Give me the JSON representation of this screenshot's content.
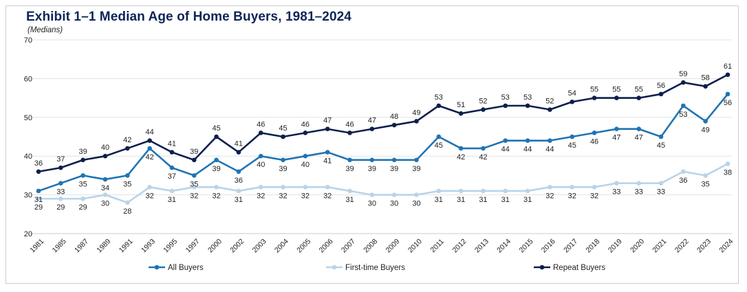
{
  "title": "Exhibit 1–1 Median Age of Home Buyers, 1981–2024",
  "subtitle": "(Medians)",
  "chart_data": {
    "type": "line",
    "title": "Exhibit 1–1 Median Age of Home Buyers, 1981–2024",
    "subtitle": "(Medians)",
    "xlabel": "",
    "ylabel": "",
    "ylim": [
      20,
      70
    ],
    "yticks": [
      20,
      30,
      40,
      50,
      60,
      70
    ],
    "grid": true,
    "legend_position": "bottom",
    "categories": [
      "1981",
      "1985",
      "1987",
      "1989",
      "1991",
      "1993",
      "1995",
      "1997",
      "2000",
      "2002",
      "2003",
      "2004",
      "2005",
      "2006",
      "2007",
      "2008",
      "2009",
      "2010",
      "2011",
      "2012",
      "2013",
      "2014",
      "2015",
      "2016",
      "2017",
      "2018",
      "2019",
      "2020",
      "2021",
      "2022",
      "2023",
      "2024"
    ],
    "series": [
      {
        "name": "All Buyers",
        "color": "#1f74b4",
        "label_position": "below",
        "values": [
          31,
          33,
          35,
          34,
          35,
          42,
          37,
          35,
          39,
          36,
          40,
          39,
          40,
          41,
          39,
          39,
          39,
          39,
          45,
          42,
          42,
          44,
          44,
          44,
          45,
          46,
          47,
          47,
          45,
          53,
          49,
          56
        ]
      },
      {
        "name": "First-time Buyers",
        "color": "#b8d4ea",
        "label_position": "below",
        "values": [
          29,
          29,
          29,
          30,
          28,
          32,
          31,
          32,
          32,
          31,
          32,
          32,
          32,
          32,
          31,
          30,
          30,
          30,
          31,
          31,
          31,
          31,
          31,
          32,
          32,
          32,
          33,
          33,
          33,
          36,
          35,
          38
        ]
      },
      {
        "name": "Repeat Buyers",
        "color": "#0d1f4c",
        "label_position": "above",
        "values": [
          36,
          37,
          39,
          40,
          42,
          44,
          41,
          39,
          45,
          41,
          46,
          45,
          46,
          47,
          46,
          47,
          48,
          49,
          53,
          51,
          52,
          53,
          53,
          52,
          54,
          55,
          55,
          55,
          56,
          59,
          58,
          61
        ]
      }
    ]
  }
}
